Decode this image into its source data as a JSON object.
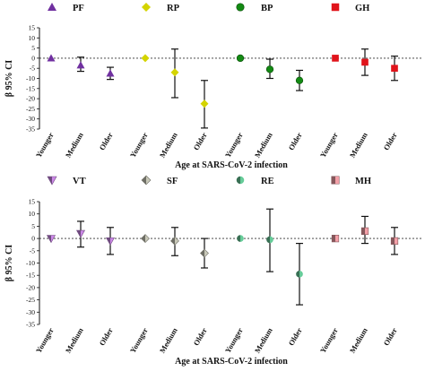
{
  "chart_data": [
    {
      "type": "scatter",
      "title": "",
      "xlabel": "Age at SARS-CoV-2 infection",
      "ylabel": "β 95% CI",
      "ylim": [
        -35,
        15
      ],
      "yticks": [
        15,
        10,
        5,
        0,
        -5,
        -10,
        -15,
        -20,
        -25,
        -30,
        -35
      ],
      "reference_line": 0,
      "groups": [
        "Younger",
        "Medium",
        "Older"
      ],
      "series": [
        {
          "name": "PF",
          "marker": "triangle-up",
          "color": "#7030a0",
          "values": [
            0,
            -3.5,
            -7.5
          ],
          "ci_low": [
            null,
            -6.5,
            -10.5
          ],
          "ci_high": [
            null,
            0.5,
            -4.5
          ]
        },
        {
          "name": "RP",
          "marker": "diamond",
          "color": "#d4d400",
          "values": [
            0,
            -7,
            -22.5
          ],
          "ci_low": [
            null,
            -19.5,
            -34.5
          ],
          "ci_high": [
            null,
            4.5,
            -11
          ]
        },
        {
          "name": "BP",
          "marker": "circle",
          "color": "#138a13",
          "values": [
            0,
            -5.5,
            -11
          ],
          "ci_low": [
            null,
            -10,
            -16
          ],
          "ci_high": [
            null,
            -0.5,
            -6
          ]
        },
        {
          "name": "GH",
          "marker": "square",
          "color": "#e0141b",
          "values": [
            0,
            -2,
            -5
          ],
          "ci_low": [
            null,
            -8.5,
            -11
          ],
          "ci_high": [
            null,
            4.5,
            1
          ]
        }
      ]
    },
    {
      "type": "scatter",
      "title": "",
      "xlabel": "Age at SARS-CoV-2 infection",
      "ylabel": "β 95% CI",
      "ylim": [
        -35,
        15
      ],
      "yticks": [
        15,
        10,
        5,
        0,
        -5,
        -10,
        -15,
        -20,
        -25,
        -30,
        -35
      ],
      "reference_line": 0,
      "groups": [
        "Younger",
        "Medium",
        "Older"
      ],
      "series": [
        {
          "name": "VT",
          "marker": "triangle-down",
          "color": "#cc88e8",
          "values": [
            0,
            2,
            -1
          ],
          "ci_low": [
            null,
            -3.5,
            -6.5
          ],
          "ci_high": [
            null,
            7,
            4.5
          ]
        },
        {
          "name": "SF",
          "marker": "diamond",
          "color": "#c8c8b8",
          "values": [
            0,
            -1,
            -6
          ],
          "ci_low": [
            null,
            -7,
            -12
          ],
          "ci_high": [
            null,
            4.5,
            0
          ]
        },
        {
          "name": "RE",
          "marker": "circle",
          "color": "#66cc99",
          "values": [
            0,
            -0.5,
            -14.5
          ],
          "ci_low": [
            null,
            -13.5,
            -27
          ],
          "ci_high": [
            null,
            12,
            -2
          ]
        },
        {
          "name": "MH",
          "marker": "square",
          "color": "#f4a0a8",
          "values": [
            0,
            3,
            -1
          ],
          "ci_low": [
            null,
            -2,
            -6.5
          ],
          "ci_high": [
            null,
            9,
            4.5
          ]
        }
      ]
    }
  ]
}
